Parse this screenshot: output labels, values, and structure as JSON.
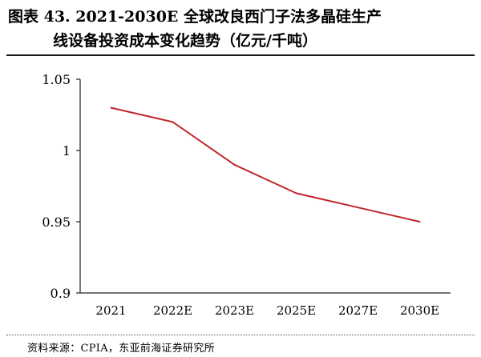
{
  "title": {
    "line1": "图表 43. 2021-2030E 全球改良西门子法多晶硅生产",
    "line2": "线设备投资成本变化趋势（亿元/千吨）"
  },
  "source": "资料来源：CPIA，东亚前海证券研究所",
  "chart_data": {
    "type": "line",
    "categories": [
      "2021",
      "2022E",
      "2023E",
      "2025E",
      "2027E",
      "2030E"
    ],
    "series": [
      {
        "values": [
          1.03,
          1.02,
          0.99,
          0.97,
          0.96,
          0.95
        ],
        "color": "#c0272d"
      }
    ],
    "ylim": [
      0.9,
      1.05
    ],
    "yticks": [
      "0.9",
      "0.95",
      "1",
      "1.05"
    ],
    "xlabel": "",
    "ylabel": "",
    "grid": false,
    "legend": "none"
  }
}
